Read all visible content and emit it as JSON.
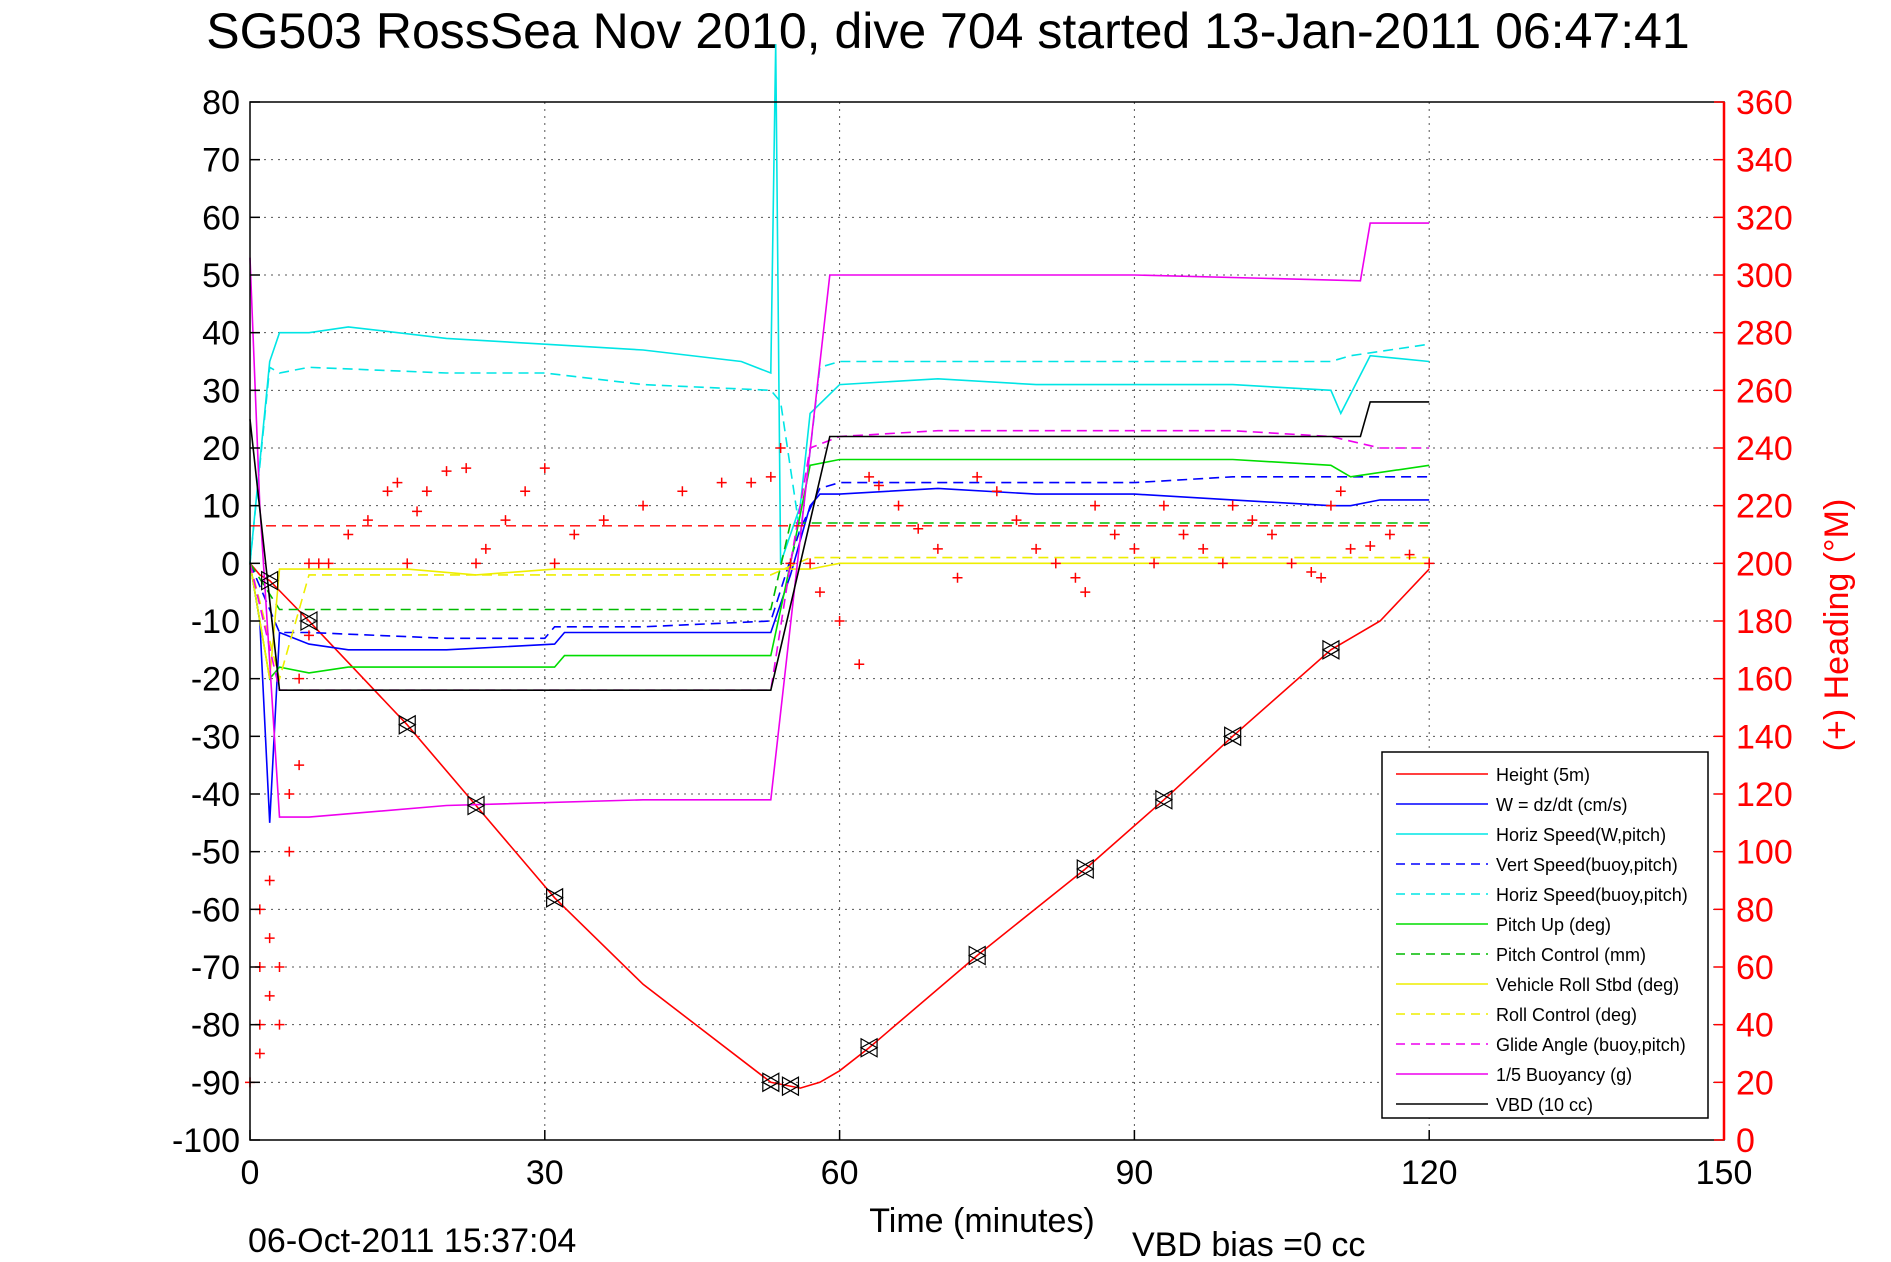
{
  "title": "SG503 RossSea Nov 2010, dive 704 started 13-Jan-2011 06:47:41",
  "footer": {
    "timestamp": "06-Oct-2011 15:37:04",
    "vbd_bias": "VBD bias =0 cc"
  },
  "chart_data": {
    "type": "line",
    "xlabel": "Time (minutes)",
    "ylabel": "",
    "y2label": "(+) Heading (°M)",
    "xlim": [
      0,
      150
    ],
    "ylim": [
      -100,
      80
    ],
    "y2lim": [
      0,
      360
    ],
    "xticks": [
      0,
      30,
      60,
      90,
      120,
      150
    ],
    "yticks": [
      80,
      70,
      60,
      50,
      40,
      30,
      20,
      10,
      0,
      -10,
      -20,
      -30,
      -40,
      -50,
      -60,
      -70,
      -80,
      -90,
      -100
    ],
    "y2ticks": [
      360,
      340,
      320,
      300,
      280,
      260,
      240,
      220,
      200,
      180,
      160,
      140,
      120,
      100,
      80,
      60,
      40,
      20,
      0
    ],
    "grid": true,
    "legend_position": "bottom-right",
    "colors": {
      "height": "#ff0000",
      "w": "#0000ff",
      "horiz_w": "#00e5e5",
      "vert_buoy": "#0000ff",
      "horiz_buoy": "#00e5e5",
      "pitch": "#00dd00",
      "pitch_ctrl": "#00bb00",
      "roll": "#eeee00",
      "roll_ctrl": "#eeee00",
      "glide": "#ee00ee",
      "buoy": "#ee00ee",
      "vbd": "#000000",
      "heading": "#ff0000",
      "axis2": "#ff0000"
    },
    "legend": [
      {
        "label": "Height (5m)",
        "color": "#ff0000",
        "dash": false
      },
      {
        "label": "W = dz/dt (cm/s)",
        "color": "#0000ff",
        "dash": false
      },
      {
        "label": "Horiz Speed(W,pitch)",
        "color": "#00e5e5",
        "dash": false
      },
      {
        "label": "Vert Speed(buoy,pitch)",
        "color": "#0000ff",
        "dash": true
      },
      {
        "label": "Horiz Speed(buoy,pitch)",
        "color": "#00e5e5",
        "dash": true
      },
      {
        "label": "Pitch Up (deg)",
        "color": "#00dd00",
        "dash": false
      },
      {
        "label": "Pitch Control (mm)",
        "color": "#00bb00",
        "dash": true
      },
      {
        "label": "Vehicle Roll Stbd (deg)",
        "color": "#eeee00",
        "dash": false
      },
      {
        "label": "Roll Control (deg)",
        "color": "#eeee00",
        "dash": true
      },
      {
        "label": "Glide Angle (buoy,pitch)",
        "color": "#ee00ee",
        "dash": true
      },
      {
        "label": "1/5 Buoyancy (g)",
        "color": "#ee00ee",
        "dash": false
      },
      {
        "label": "VBD (10 cc)",
        "color": "#000000",
        "dash": false
      }
    ],
    "series": [
      {
        "key": "height",
        "x": [
          0,
          1,
          2,
          6,
          16,
          23,
          31,
          40,
          53,
          56,
          58,
          60,
          63,
          74,
          85,
          93,
          100,
          110,
          115,
          120
        ],
        "y": [
          0,
          -2,
          -3,
          -10,
          -28,
          -42,
          -58,
          -73,
          -90,
          -91,
          -90,
          -88,
          -84,
          -68,
          -53,
          -41,
          -30,
          -15,
          -10,
          -1
        ]
      },
      {
        "key": "w",
        "x": [
          0,
          1,
          2,
          3,
          6,
          10,
          20,
          31,
          32,
          40,
          52,
          53,
          55,
          57,
          58,
          60,
          70,
          80,
          90,
          100,
          110,
          112,
          115,
          120
        ],
        "y": [
          0,
          -10,
          -45,
          -12,
          -14,
          -15,
          -15,
          -14,
          -12,
          -12,
          -12,
          -12,
          -2,
          10,
          12,
          12,
          13,
          12,
          12,
          11,
          10,
          10,
          11,
          11
        ]
      },
      {
        "key": "horiz_w",
        "x": [
          0,
          2,
          3,
          6,
          10,
          20,
          30,
          40,
          50,
          53,
          53.5,
          54,
          56,
          57,
          60,
          70,
          80,
          90,
          100,
          110,
          111,
          114,
          120
        ],
        "y": [
          0,
          35,
          40,
          40,
          41,
          39,
          38,
          37,
          35,
          33,
          90,
          0,
          10,
          26,
          31,
          32,
          31,
          31,
          31,
          30,
          26,
          36,
          35
        ]
      },
      {
        "key": "vert_buoy",
        "x": [
          0,
          3,
          6,
          20,
          30,
          31,
          40,
          53,
          56,
          58,
          60,
          70,
          80,
          90,
          100,
          110,
          120
        ],
        "y": [
          0,
          -12,
          -12,
          -13,
          -13,
          -11,
          -11,
          -10,
          6,
          13,
          14,
          14,
          14,
          14,
          15,
          15,
          15
        ]
      },
      {
        "key": "horiz_buoy",
        "x": [
          0,
          2,
          3,
          6,
          20,
          30,
          40,
          53,
          54,
          56,
          58,
          60,
          70,
          80,
          90,
          100,
          110,
          112,
          120
        ],
        "y": [
          0,
          34,
          33,
          34,
          33,
          33,
          31,
          30,
          28,
          5,
          34,
          35,
          35,
          35,
          35,
          35,
          35,
          36,
          38
        ]
      },
      {
        "key": "pitch",
        "x": [
          0,
          2,
          3,
          6,
          10,
          20,
          31,
          32,
          40,
          53,
          55,
          57,
          60,
          70,
          80,
          90,
          100,
          110,
          112,
          120
        ],
        "y": [
          0,
          -20,
          -18,
          -19,
          -18,
          -18,
          -18,
          -16,
          -16,
          -16,
          0,
          17,
          18,
          18,
          18,
          18,
          18,
          17,
          15,
          17
        ]
      },
      {
        "key": "pitch_ctrl",
        "x": [
          0,
          3,
          53,
          55,
          120
        ],
        "y": [
          0,
          -8,
          -8,
          7,
          7
        ]
      },
      {
        "key": "roll",
        "x": [
          0,
          2,
          3,
          6,
          16,
          23,
          31,
          40,
          53,
          57,
          60,
          70,
          90,
          110,
          120
        ],
        "y": [
          0,
          -20,
          -1,
          -1,
          -1,
          -2,
          -1,
          -1,
          -1,
          -1,
          0,
          0,
          0,
          0,
          0
        ]
      },
      {
        "key": "roll_ctrl",
        "x": [
          0,
          3,
          6,
          7,
          16,
          23,
          31,
          53,
          57,
          63,
          74,
          85,
          93,
          100,
          110,
          120
        ],
        "y": [
          0,
          -20,
          -2,
          -2,
          -2,
          -2,
          -2,
          -2,
          1,
          1,
          1,
          1,
          1,
          1,
          1,
          1
        ]
      },
      {
        "key": "glide",
        "x": [
          0,
          3,
          6,
          20,
          31,
          40,
          53,
          55,
          57,
          60,
          70,
          80,
          90,
          100,
          110,
          115,
          120
        ],
        "y": [
          0,
          -22,
          -22,
          -22,
          -22,
          -22,
          -22,
          0,
          20,
          22,
          23,
          23,
          23,
          23,
          22,
          20,
          20
        ]
      },
      {
        "key": "buoy",
        "x": [
          0,
          1,
          3,
          6,
          20,
          40,
          53,
          59,
          60,
          90,
          113,
          114,
          120
        ],
        "y": [
          53,
          10,
          -44,
          -44,
          -42,
          -41,
          -41,
          50,
          50,
          50,
          49,
          59,
          59
        ]
      },
      {
        "key": "vbd",
        "x": [
          0,
          3,
          53,
          59,
          60,
          113,
          114,
          120
        ],
        "y": [
          25,
          -22,
          -22,
          22,
          22,
          22,
          28,
          28
        ]
      }
    ],
    "heading_points": {
      "x": [
        0,
        1,
        1,
        1,
        1,
        2,
        2,
        2,
        3,
        3,
        4,
        4,
        5,
        5,
        6,
        6,
        7,
        8,
        10,
        12,
        14,
        15,
        16,
        17,
        18,
        20,
        22,
        23,
        24,
        26,
        28,
        30,
        31,
        33,
        36,
        40,
        44,
        48,
        51,
        53,
        54,
        55,
        57,
        58,
        60,
        62,
        63,
        64,
        66,
        68,
        70,
        72,
        74,
        76,
        78,
        80,
        82,
        84,
        85,
        86,
        88,
        90,
        92,
        93,
        95,
        97,
        99,
        100,
        102,
        104,
        106,
        108,
        109,
        110,
        111,
        112,
        114,
        116,
        118,
        120
      ],
      "y": [
        20,
        30,
        40,
        60,
        80,
        90,
        70,
        50,
        40,
        60,
        100,
        120,
        130,
        160,
        175,
        200,
        200,
        200,
        210,
        215,
        225,
        228,
        200,
        218,
        225,
        232,
        233,
        200,
        205,
        215,
        225,
        233,
        200,
        210,
        215,
        220,
        225,
        228,
        228,
        230,
        240,
        200,
        200,
        190,
        180,
        165,
        230,
        227,
        220,
        212,
        205,
        195,
        230,
        225,
        215,
        205,
        200,
        195,
        190,
        220,
        210,
        205,
        200,
        220,
        210,
        205,
        200,
        220,
        215,
        210,
        200,
        197,
        195,
        220,
        225,
        205,
        206,
        210,
        203,
        200
      ]
    }
  }
}
